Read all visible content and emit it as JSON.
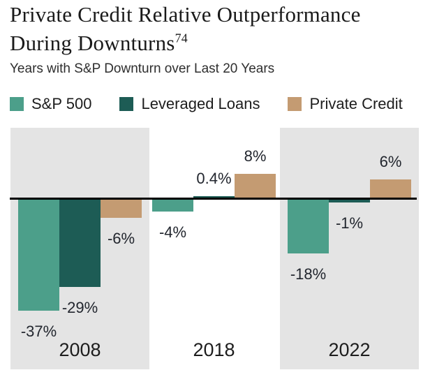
{
  "header": {
    "title_line1": "Private Credit Relative Outperformance",
    "title_line2": "During Downturns",
    "footnote_marker": "74",
    "subtitle": "Years with S&P Downturn over Last 20 Years"
  },
  "chart_data": {
    "type": "bar",
    "title": "Private Credit Relative Outperformance During Downturns",
    "subtitle": "Years with S&P Downturn over Last 20 Years",
    "unit": "percent",
    "categories": [
      "2008",
      "2018",
      "2022"
    ],
    "series": [
      {
        "name": "S&P 500",
        "color": "#4C9F8A",
        "values": [
          -37,
          -4,
          -18
        ],
        "labels": [
          "-37%",
          "-4%",
          "-18%"
        ]
      },
      {
        "name": "Leveraged Loans",
        "color": "#1D5C55",
        "values": [
          -29,
          0.4,
          -1
        ],
        "labels": [
          "-29%",
          "0.4%",
          "-1%"
        ]
      },
      {
        "name": "Private Credit",
        "color": "#C49B72",
        "values": [
          -6,
          8,
          6
        ],
        "labels": [
          "-6%",
          "8%",
          "6%"
        ]
      }
    ],
    "highlighted_categories": [
      "2008",
      "2022"
    ],
    "panel_color": "#E4E4E4",
    "axis_line_color": "#000000",
    "baseline": 0,
    "grid": false,
    "value_labels": true,
    "legend_position": "top"
  }
}
